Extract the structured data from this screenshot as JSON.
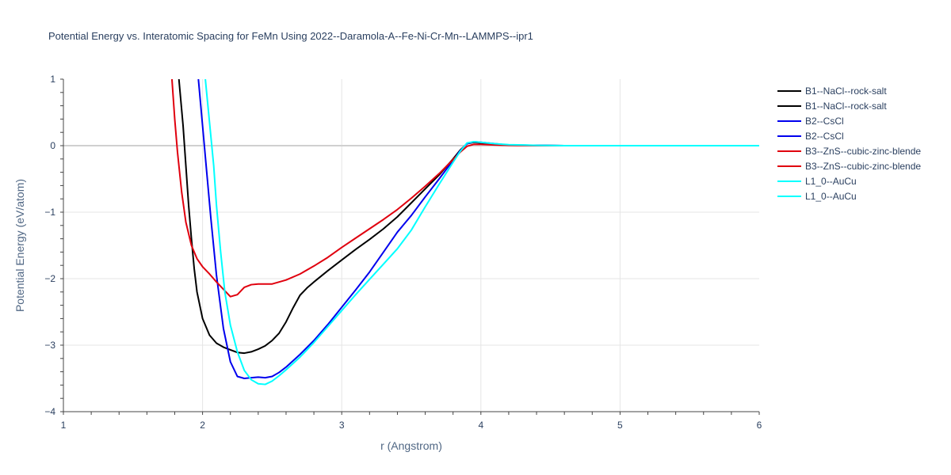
{
  "chart_data": {
    "type": "line",
    "title": "Potential Energy vs. Interatomic Spacing for FeMn Using 2022--Daramola-A--Fe-Ni-Cr-Mn--LAMMPS--ipr1",
    "xlabel": "r (Angstrom)",
    "ylabel": "Potential Energy (eV/atom)",
    "xlim": [
      1,
      6
    ],
    "ylim": [
      -4,
      1
    ],
    "x_ticks": [
      "1",
      "2",
      "3",
      "4",
      "5",
      "6"
    ],
    "y_ticks": [
      "−4",
      "−3",
      "−2",
      "−1",
      "0",
      "1"
    ],
    "grid": true,
    "legend_position": "right",
    "series": [
      {
        "name": "B1--NaCl--rock-salt",
        "color": "#000000",
        "x": [
          1.83,
          1.86,
          1.88,
          1.9,
          1.92,
          1.94,
          1.96,
          2.0,
          2.05,
          2.1,
          2.15,
          2.2,
          2.25,
          2.3,
          2.35,
          2.4,
          2.45,
          2.5,
          2.55,
          2.6,
          2.65,
          2.7,
          2.75,
          2.8,
          2.9,
          3.0,
          3.1,
          3.2,
          3.3,
          3.4,
          3.5,
          3.6,
          3.7,
          3.8,
          3.85,
          3.9,
          3.95,
          4.0,
          4.1,
          4.2,
          4.4,
          4.6,
          5.0,
          5.5,
          6.0
        ],
        "y": [
          1.0,
          0.3,
          -0.3,
          -0.9,
          -1.4,
          -1.85,
          -2.2,
          -2.6,
          -2.85,
          -2.97,
          -3.03,
          -3.07,
          -3.11,
          -3.12,
          -3.1,
          -3.06,
          -3.01,
          -2.93,
          -2.82,
          -2.65,
          -2.44,
          -2.25,
          -2.14,
          -2.05,
          -1.88,
          -1.72,
          -1.56,
          -1.41,
          -1.25,
          -1.07,
          -0.86,
          -0.65,
          -0.44,
          -0.2,
          -0.07,
          0.03,
          0.05,
          0.04,
          0.02,
          0.01,
          0.005,
          0.0,
          0.0,
          0.0,
          0.0
        ]
      },
      {
        "name": "B2--CsCl",
        "color": "#0000ee",
        "x": [
          1.97,
          2.0,
          2.03,
          2.06,
          2.1,
          2.15,
          2.2,
          2.25,
          2.3,
          2.35,
          2.4,
          2.45,
          2.5,
          2.55,
          2.6,
          2.7,
          2.8,
          2.9,
          3.0,
          3.1,
          3.2,
          3.3,
          3.4,
          3.5,
          3.6,
          3.7,
          3.8,
          3.85,
          3.9,
          3.95,
          4.0,
          4.1,
          4.2,
          4.4,
          4.6,
          5.0,
          5.5,
          6.0
        ],
        "y": [
          1.0,
          0.3,
          -0.4,
          -1.1,
          -1.95,
          -2.75,
          -3.25,
          -3.47,
          -3.5,
          -3.49,
          -3.48,
          -3.49,
          -3.47,
          -3.41,
          -3.33,
          -3.14,
          -2.93,
          -2.69,
          -2.43,
          -2.17,
          -1.9,
          -1.6,
          -1.3,
          -1.05,
          -0.77,
          -0.5,
          -0.22,
          -0.08,
          0.03,
          0.06,
          0.05,
          0.03,
          0.01,
          0.005,
          0.0,
          0.0,
          0.0,
          0.0
        ]
      },
      {
        "name": "B3--ZnS--cubic-zinc-blende",
        "color": "#e0000e",
        "x": [
          1.78,
          1.8,
          1.82,
          1.85,
          1.88,
          1.92,
          1.96,
          2.0,
          2.05,
          2.1,
          2.15,
          2.2,
          2.25,
          2.3,
          2.35,
          2.4,
          2.5,
          2.6,
          2.7,
          2.8,
          2.9,
          3.0,
          3.1,
          3.2,
          3.3,
          3.4,
          3.5,
          3.6,
          3.7,
          3.8,
          3.85,
          3.9,
          3.95,
          4.0,
          4.1,
          4.2,
          4.4,
          4.6,
          5.0,
          5.5,
          6.0
        ],
        "y": [
          1.0,
          0.4,
          -0.1,
          -0.7,
          -1.15,
          -1.5,
          -1.7,
          -1.82,
          -1.93,
          -2.05,
          -2.16,
          -2.27,
          -2.24,
          -2.13,
          -2.09,
          -2.08,
          -2.08,
          -2.02,
          -1.93,
          -1.81,
          -1.68,
          -1.53,
          -1.39,
          -1.25,
          -1.11,
          -0.96,
          -0.79,
          -0.61,
          -0.42,
          -0.21,
          -0.1,
          -0.01,
          0.02,
          0.02,
          0.01,
          0.005,
          0.0,
          0.0,
          0.0,
          0.0,
          0.0
        ]
      },
      {
        "name": "L1_0--AuCu",
        "color": "#00ffff",
        "x": [
          2.02,
          2.05,
          2.08,
          2.1,
          2.13,
          2.16,
          2.2,
          2.25,
          2.3,
          2.35,
          2.4,
          2.45,
          2.5,
          2.55,
          2.6,
          2.7,
          2.8,
          2.9,
          3.0,
          3.1,
          3.2,
          3.3,
          3.4,
          3.5,
          3.6,
          3.7,
          3.8,
          3.85,
          3.9,
          3.95,
          4.0,
          4.1,
          4.2,
          4.3,
          4.4,
          4.6,
          5.0,
          5.5,
          6.0
        ],
        "y": [
          1.0,
          0.35,
          -0.3,
          -0.9,
          -1.6,
          -2.2,
          -2.7,
          -3.1,
          -3.38,
          -3.52,
          -3.58,
          -3.59,
          -3.54,
          -3.46,
          -3.37,
          -3.18,
          -2.96,
          -2.72,
          -2.48,
          -2.24,
          -2.01,
          -1.78,
          -1.55,
          -1.27,
          -0.92,
          -0.58,
          -0.25,
          -0.09,
          0.04,
          0.06,
          0.05,
          0.03,
          0.015,
          0.01,
          0.005,
          0.0,
          0.0,
          0.0,
          0.0
        ]
      }
    ],
    "legend_entries": [
      {
        "label": "B1--NaCl--rock-salt",
        "color": "#000000"
      },
      {
        "label": "B1--NaCl--rock-salt",
        "color": "#000000"
      },
      {
        "label": "B2--CsCl",
        "color": "#0000ee"
      },
      {
        "label": "B2--CsCl",
        "color": "#0000ee"
      },
      {
        "label": "B3--ZnS--cubic-zinc-blende",
        "color": "#e0000e"
      },
      {
        "label": "B3--ZnS--cubic-zinc-blende",
        "color": "#e0000e"
      },
      {
        "label": "L1_0--AuCu",
        "color": "#00ffff"
      },
      {
        "label": "L1_0--AuCu",
        "color": "#00ffff"
      }
    ]
  }
}
